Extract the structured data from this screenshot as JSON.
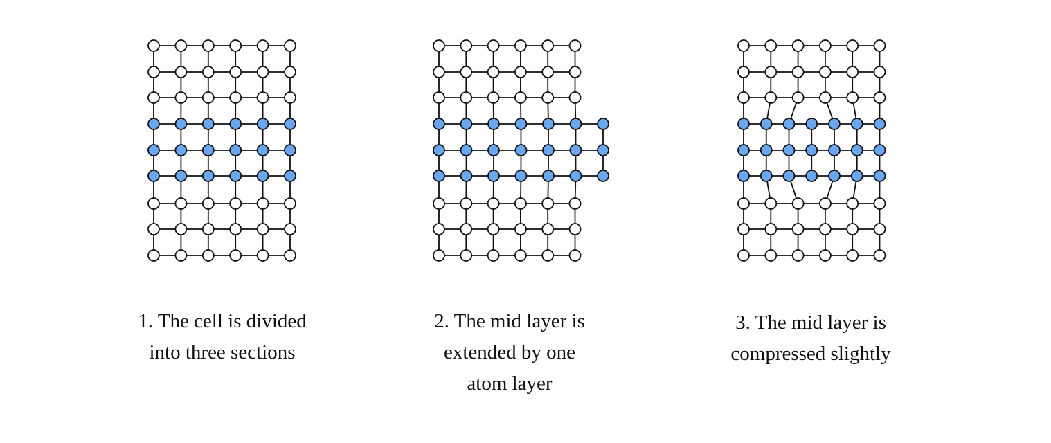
{
  "colors": {
    "highlight_atom": "#6aa7ee",
    "plain_atom": "#ffffff",
    "stroke": "#111111"
  },
  "panels": [
    {
      "id": "panel-1",
      "caption_lines": [
        "1. The cell is divided",
        "into three sections"
      ]
    },
    {
      "id": "panel-2",
      "caption_lines": [
        "2. The mid layer is",
        "extended by one",
        "atom layer"
      ]
    },
    {
      "id": "panel-3",
      "caption_lines": [
        "3. The mid layer is",
        "compressed slightly"
      ]
    }
  ]
}
